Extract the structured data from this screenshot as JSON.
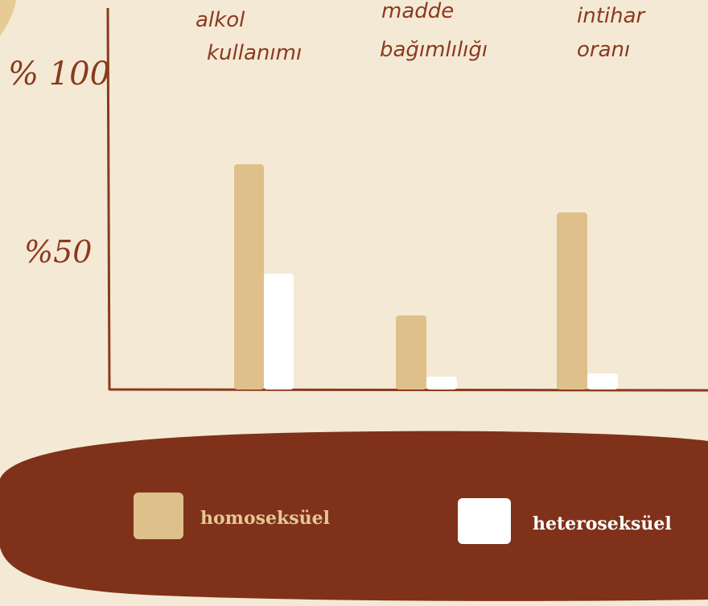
{
  "chart_data": {
    "type": "bar",
    "categories": [
      {
        "line1": "alkol",
        "line2": "kullanımı"
      },
      {
        "line1": "madde",
        "line2": "bağımlılığı"
      },
      {
        "line1": "intihar",
        "line2": "oranı"
      }
    ],
    "series": [
      {
        "name": "homoseksüel",
        "color": "#dfc08a",
        "values": [
          70,
          23,
          55
        ]
      },
      {
        "name": "heteroseksüel",
        "color": "#ffffff",
        "values": [
          36,
          4,
          5
        ]
      }
    ],
    "y_ticks": [
      {
        "value": 100,
        "label": "% 100"
      },
      {
        "value": 50,
        "label": "%50"
      }
    ],
    "ylim": [
      0,
      100
    ],
    "legend_position": "bottom",
    "grid": false
  },
  "colors": {
    "background": "#f4e9d5",
    "axis": "#8a3a1e",
    "legend_background": "#7f3219",
    "label_text": "#8a3a1e",
    "accent_blob": "#e7cb94"
  }
}
